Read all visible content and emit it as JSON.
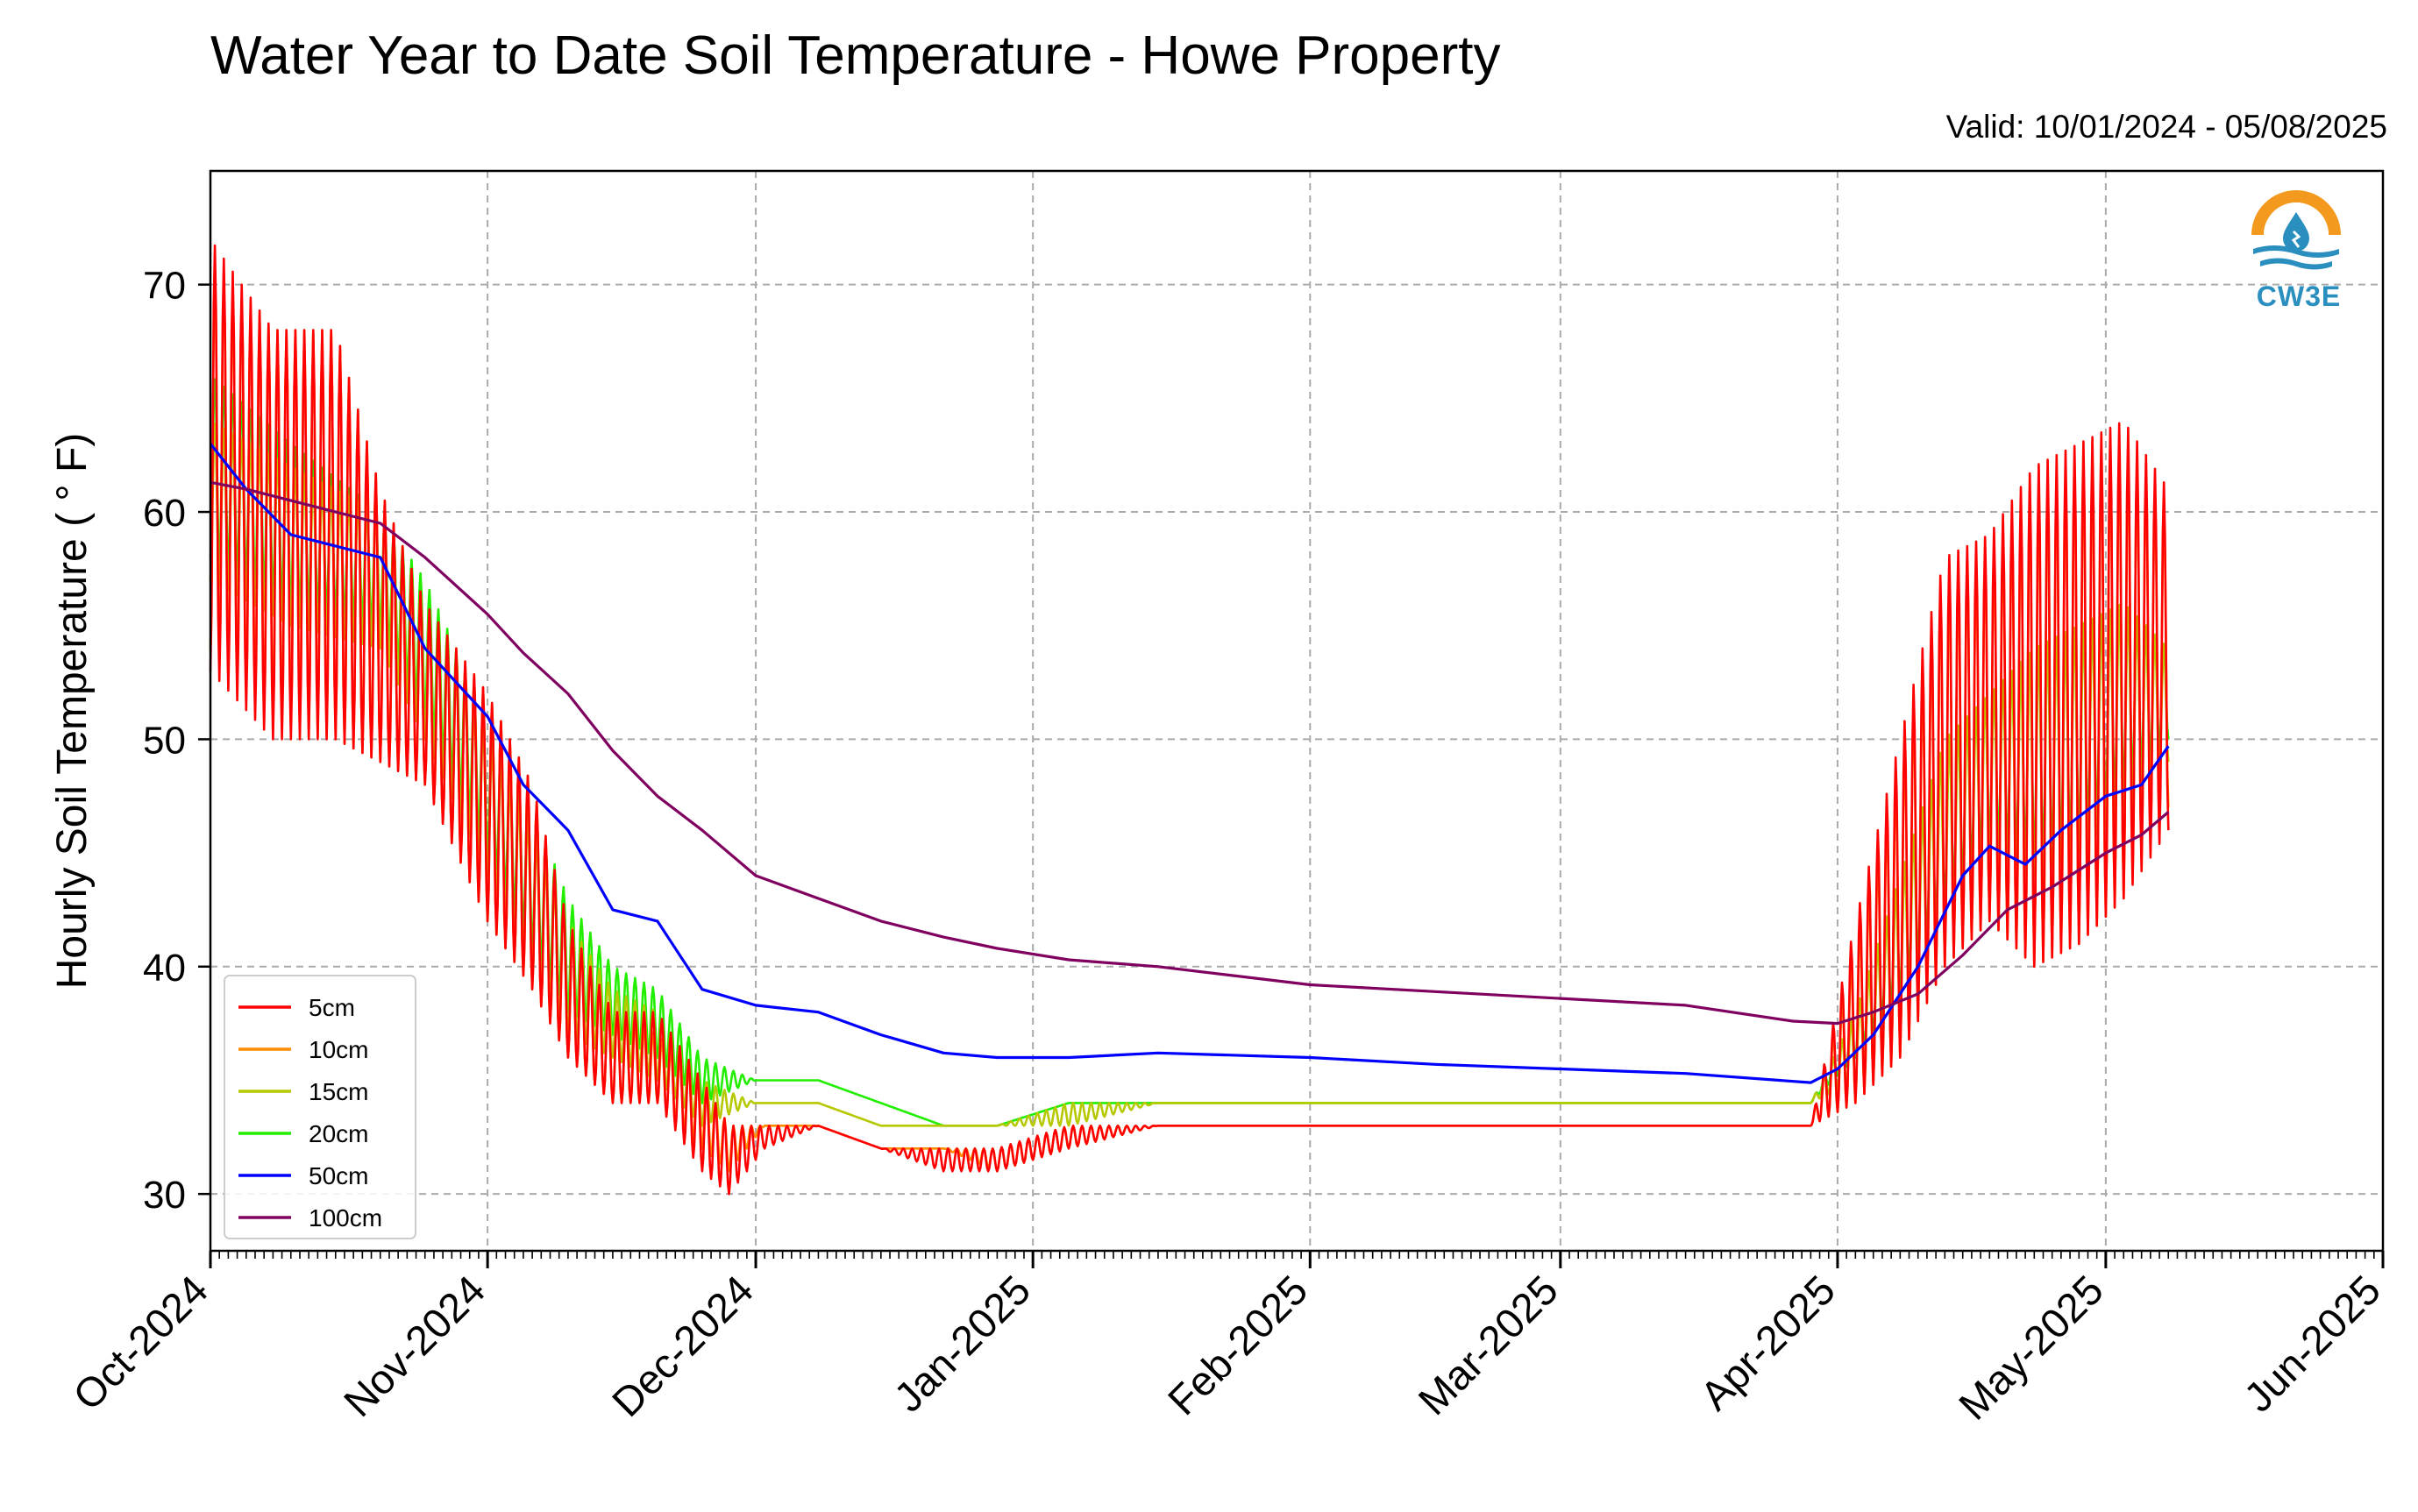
{
  "title": "Water Year to Date Soil Temperature - Howe Property",
  "valid": "Valid: 10/01/2024 - 05/08/2025",
  "logo_text": "CW3E",
  "chart_data": {
    "type": "line",
    "title": "Water Year to Date Soil Temperature - Howe Property",
    "xlabel": "",
    "ylabel": "Hourly Soil Temperature ( ° F)",
    "ylim": [
      27.5,
      75
    ],
    "yticks": [
      30,
      40,
      50,
      60,
      70
    ],
    "xlim": [
      "2024-10-01",
      "2025-06-01"
    ],
    "xticks": [
      "2024-10-01",
      "2024-11-01",
      "2024-12-01",
      "2025-01-01",
      "2025-02-01",
      "2025-03-01",
      "2025-04-01",
      "2025-05-01",
      "2025-06-01"
    ],
    "xtick_labels": [
      "Oct-2024",
      "Nov-2024",
      "Dec-2024",
      "Jan-2025",
      "Feb-2025",
      "Mar-2025",
      "Apr-2025",
      "May-2025",
      "Jun-2025"
    ],
    "grid": true,
    "legend_position": "lower-left",
    "series": [
      {
        "name": "5cm",
        "color": "#ff0000",
        "x": [
          "2024-10-01",
          "2024-10-08",
          "2024-10-15",
          "2024-10-20",
          "2024-10-25",
          "2024-11-01",
          "2024-11-06",
          "2024-11-10",
          "2024-11-15",
          "2024-11-20",
          "2024-11-25",
          "2024-11-28",
          "2024-12-02",
          "2024-12-08",
          "2024-12-15",
          "2024-12-22",
          "2024-12-28",
          "2025-01-05",
          "2025-01-15",
          "2025-02-01",
          "2025-02-15",
          "2025-03-01",
          "2025-03-15",
          "2025-03-29",
          "2025-04-03",
          "2025-04-08",
          "2025-04-13",
          "2025-04-18",
          "2025-04-23",
          "2025-04-28",
          "2025-05-03",
          "2025-05-08"
        ],
        "lo": [
          53,
          50,
          50,
          49,
          48,
          42,
          39,
          36,
          34,
          34,
          31,
          30,
          32,
          33,
          32,
          31,
          31,
          32,
          33,
          33,
          33,
          33,
          33,
          33,
          34,
          36,
          40,
          42,
          40,
          41,
          43,
          46
        ],
        "hi": [
          72,
          68,
          68,
          61,
          56,
          52,
          48,
          42,
          38,
          38,
          35,
          33,
          33,
          33,
          32,
          32,
          32,
          33,
          33,
          33,
          33,
          33,
          33,
          33,
          42,
          50,
          58,
          59,
          62,
          63,
          64,
          61
        ]
      },
      {
        "name": "10cm",
        "color": "#ff8c00",
        "x": [
          "2024-10-01",
          "2024-10-08",
          "2024-10-15",
          "2024-10-20",
          "2024-10-25",
          "2024-11-01",
          "2024-11-06",
          "2024-11-10",
          "2024-11-15",
          "2024-11-20",
          "2024-11-25",
          "2024-11-28",
          "2024-12-02",
          "2024-12-08",
          "2024-12-15",
          "2024-12-22",
          "2024-12-28",
          "2025-01-05",
          "2025-01-15",
          "2025-02-01",
          "2025-02-15",
          "2025-03-01",
          "2025-03-15",
          "2025-03-29",
          "2025-04-03",
          "2025-04-08",
          "2025-04-13",
          "2025-04-18",
          "2025-04-23",
          "2025-04-28",
          "2025-05-03",
          "2025-05-08"
        ],
        "lo": [
          54,
          51,
          50,
          49,
          48,
          42,
          39,
          36,
          34,
          34,
          32,
          31,
          33,
          33,
          32,
          32,
          31,
          32,
          33,
          33,
          33,
          33,
          33,
          33,
          34,
          36,
          40,
          42,
          40,
          41,
          43,
          47
        ],
        "hi": [
          71,
          68,
          68,
          61,
          56,
          52,
          48,
          42,
          38,
          37,
          35,
          33,
          33,
          33,
          32,
          32,
          32,
          33,
          33,
          33,
          33,
          33,
          33,
          33,
          41,
          49,
          57,
          58,
          61,
          62,
          63,
          60
        ]
      },
      {
        "name": "15cm",
        "color": "#b5c800",
        "x": [
          "2024-10-01",
          "2024-10-10",
          "2024-10-20",
          "2024-10-25",
          "2024-11-01",
          "2024-11-06",
          "2024-11-10",
          "2024-11-15",
          "2024-11-20",
          "2024-11-25",
          "2024-12-01",
          "2024-12-08",
          "2024-12-15",
          "2024-12-22",
          "2024-12-28",
          "2025-01-05",
          "2025-01-15",
          "2025-02-01",
          "2025-02-15",
          "2025-03-01",
          "2025-03-15",
          "2025-03-29",
          "2025-04-03",
          "2025-04-08",
          "2025-04-13",
          "2025-04-18",
          "2025-04-23",
          "2025-04-28",
          "2025-05-03",
          "2025-05-08"
        ],
        "lo": [
          57,
          55,
          54,
          50,
          44,
          40,
          37,
          36,
          35,
          33,
          34,
          34,
          33,
          33,
          33,
          33,
          34,
          34,
          34,
          34,
          34,
          34,
          35,
          38,
          42,
          45,
          44,
          45,
          47,
          49
        ],
        "hi": [
          64,
          62,
          60,
          56,
          50,
          46,
          42,
          39,
          38,
          35,
          34,
          34,
          33,
          33,
          33,
          34,
          34,
          34,
          34,
          34,
          34,
          34,
          38,
          44,
          50,
          52,
          54,
          55,
          56,
          54
        ]
      },
      {
        "name": "20cm",
        "color": "#22ee00",
        "x": [
          "2024-10-01",
          "2024-10-10",
          "2024-10-20",
          "2024-10-25",
          "2024-11-01",
          "2024-11-06",
          "2024-11-10",
          "2024-11-15",
          "2024-11-20",
          "2024-11-25",
          "2024-12-01",
          "2024-12-08",
          "2024-12-15",
          "2024-12-22",
          "2024-12-28",
          "2025-01-05",
          "2025-01-15",
          "2025-02-01",
          "2025-02-15",
          "2025-03-01",
          "2025-03-15",
          "2025-03-29",
          "2025-04-03",
          "2025-04-08",
          "2025-04-13",
          "2025-04-18",
          "2025-04-23",
          "2025-04-28",
          "2025-05-03",
          "2025-05-08"
        ],
        "lo": [
          58,
          56,
          55,
          51,
          45,
          41,
          38,
          37,
          36,
          34,
          35,
          35,
          34,
          33,
          33,
          34,
          34,
          34,
          34,
          34,
          34,
          34,
          36,
          39,
          43,
          46,
          45,
          46,
          48,
          50
        ],
        "hi": [
          66,
          63,
          60,
          57,
          51,
          47,
          43,
          40,
          39,
          36,
          35,
          35,
          34,
          33,
          33,
          34,
          34,
          34,
          34,
          34,
          34,
          34,
          38,
          44,
          50,
          52,
          54,
          55,
          56,
          54
        ]
      },
      {
        "name": "50cm",
        "color": "#0000ff",
        "x": [
          "2024-10-01",
          "2024-10-05",
          "2024-10-10",
          "2024-10-15",
          "2024-10-20",
          "2024-10-25",
          "2024-11-01",
          "2024-11-05",
          "2024-11-10",
          "2024-11-15",
          "2024-11-20",
          "2024-11-25",
          "2024-12-01",
          "2024-12-08",
          "2024-12-15",
          "2024-12-22",
          "2024-12-28",
          "2025-01-05",
          "2025-01-15",
          "2025-02-01",
          "2025-02-15",
          "2025-03-01",
          "2025-03-15",
          "2025-03-29",
          "2025-04-01",
          "2025-04-05",
          "2025-04-10",
          "2025-04-15",
          "2025-04-18",
          "2025-04-22",
          "2025-04-26",
          "2025-05-01",
          "2025-05-05",
          "2025-05-08"
        ],
        "y": [
          63,
          61,
          59,
          58.5,
          58,
          54,
          51,
          48,
          46,
          42.5,
          42,
          39,
          38.3,
          38,
          37,
          36.2,
          36,
          36,
          36.2,
          36,
          35.7,
          35.5,
          35.3,
          34.9,
          35.5,
          37,
          40,
          44,
          45.3,
          44.5,
          46,
          47.5,
          48,
          49.7
        ]
      },
      {
        "name": "100cm",
        "color": "#800060",
        "x": [
          "2024-10-01",
          "2024-10-05",
          "2024-10-10",
          "2024-10-15",
          "2024-10-20",
          "2024-10-25",
          "2024-11-01",
          "2024-11-05",
          "2024-11-10",
          "2024-11-15",
          "2024-11-20",
          "2024-11-25",
          "2024-12-01",
          "2024-12-08",
          "2024-12-15",
          "2024-12-22",
          "2024-12-28",
          "2025-01-05",
          "2025-01-15",
          "2025-02-01",
          "2025-02-15",
          "2025-03-01",
          "2025-03-15",
          "2025-03-27",
          "2025-04-01",
          "2025-04-05",
          "2025-04-10",
          "2025-04-15",
          "2025-04-20",
          "2025-04-25",
          "2025-05-01",
          "2025-05-05",
          "2025-05-08"
        ],
        "y": [
          61.3,
          61,
          60.5,
          60,
          59.5,
          58,
          55.5,
          53.8,
          52,
          49.5,
          47.5,
          46,
          44,
          43,
          42,
          41.3,
          40.8,
          40.3,
          40,
          39.2,
          38.9,
          38.6,
          38.3,
          37.6,
          37.5,
          38,
          38.8,
          40.5,
          42.5,
          43.5,
          45,
          45.8,
          46.8
        ]
      }
    ]
  }
}
